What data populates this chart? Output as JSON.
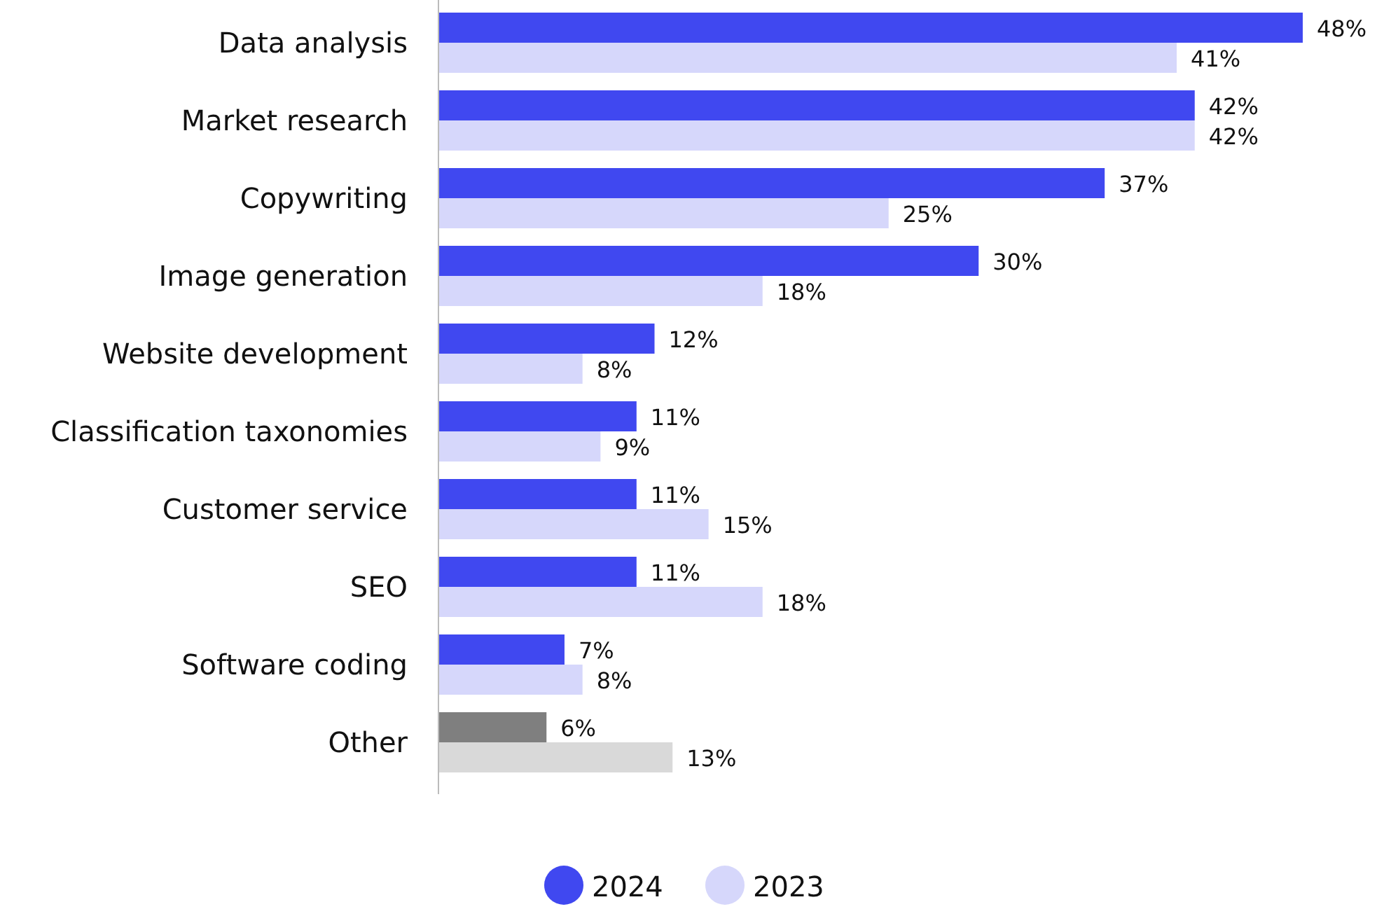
{
  "chart_data": {
    "type": "bar",
    "orientation": "horizontal",
    "categories": [
      "Data analysis",
      "Market research",
      "Copywriting",
      "Image generation",
      "Website development",
      "Classification taxonomies",
      "Customer service",
      "SEO",
      "Software coding",
      "Other"
    ],
    "series": [
      {
        "name": "2024",
        "color": "#4048f0",
        "colors": [
          "#4048f0",
          "#4048f0",
          "#4048f0",
          "#4048f0",
          "#4048f0",
          "#4048f0",
          "#4048f0",
          "#4048f0",
          "#4048f0",
          "#7f7f7f"
        ],
        "values": [
          48,
          42,
          37,
          30,
          12,
          11,
          11,
          11,
          7,
          6
        ],
        "value_labels": [
          "48%",
          "42%",
          "37%",
          "30%",
          "12%",
          "11%",
          "11%",
          "11%",
          "7%",
          "6%"
        ]
      },
      {
        "name": "2023",
        "color": "#d6d7fb",
        "colors": [
          "#d6d7fb",
          "#d6d7fb",
          "#d6d7fb",
          "#d6d7fb",
          "#d6d7fb",
          "#d6d7fb",
          "#d6d7fb",
          "#d6d7fb",
          "#d6d7fb",
          "#d9d9d9"
        ],
        "values": [
          41,
          42,
          25,
          18,
          8,
          9,
          15,
          18,
          8,
          13
        ],
        "value_labels": [
          "41%",
          "42%",
          "25%",
          "18%",
          "8%",
          "9%",
          "15%",
          "18%",
          "8%",
          "13%"
        ]
      }
    ],
    "legend": "bottom"
  }
}
